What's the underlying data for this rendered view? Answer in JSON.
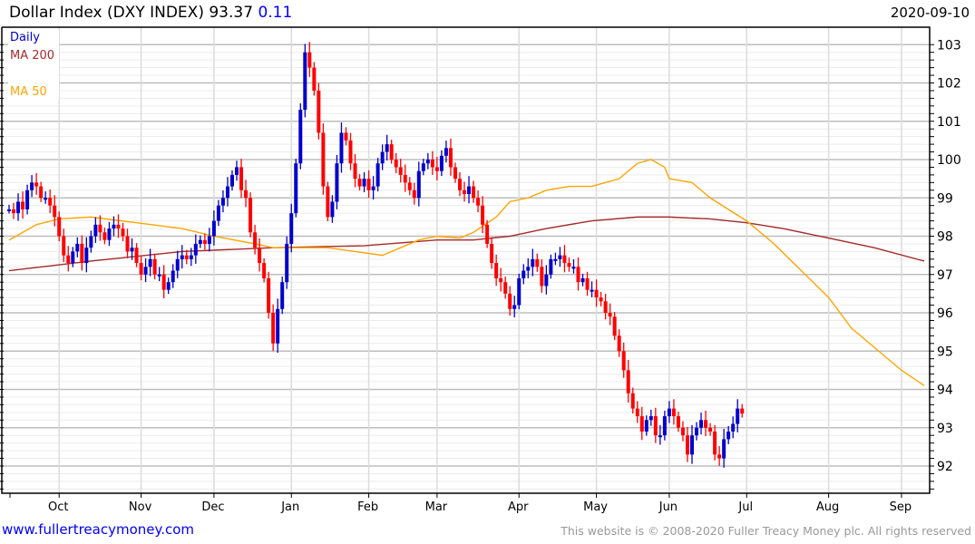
{
  "header": {
    "title": "Dollar Index (DXY INDEX)",
    "last": "93.37",
    "change": "0.11",
    "date": "2020-09-10"
  },
  "footer": {
    "site": "www.fullertreacymoney.com",
    "copyright": "This website is © 2008-2020 Fuller Treacy Money plc. All rights reserved"
  },
  "colors": {
    "up": "#0000cc",
    "down": "#ff0000",
    "ma200": "#a52a2a",
    "ma50": "#ffa500",
    "legend_daily": "#0000cc"
  },
  "chart_data": {
    "type": "candlestick",
    "title": "Dollar Index (DXY INDEX)",
    "legend": [
      {
        "label": "Daily",
        "color": "#0000cc"
      },
      {
        "label": "MA 200",
        "color": "#a52a2a"
      },
      {
        "label": "MA 50",
        "color": "#ffa500"
      }
    ],
    "legend_placement": "top-left",
    "ylim": [
      91.4,
      103.2
    ],
    "yticks": [
      92,
      93,
      94,
      95,
      96,
      97,
      98,
      99,
      100,
      101,
      102,
      103
    ],
    "x_days": 202,
    "xticks": [
      {
        "label": "Oct",
        "day": 11
      },
      {
        "label": "Nov",
        "day": 29
      },
      {
        "label": "Dec",
        "day": 45
      },
      {
        "label": "Jan",
        "day": 62
      },
      {
        "label": "Feb",
        "day": 79
      },
      {
        "label": "Mar",
        "day": 94
      },
      {
        "label": "Apr",
        "day": 112
      },
      {
        "label": "May",
        "day": 129
      },
      {
        "label": "Jun",
        "day": 145
      },
      {
        "label": "Jul",
        "day": 162
      },
      {
        "label": "Aug",
        "day": 180
      },
      {
        "label": "Sep",
        "day": 196
      }
    ],
    "close": [
      98.7,
      98.6,
      98.9,
      98.7,
      99.2,
      99.4,
      99.3,
      99.0,
      99.0,
      98.8,
      98.5,
      98.0,
      97.5,
      97.3,
      97.6,
      97.8,
      97.3,
      97.7,
      98.0,
      98.3,
      98.1,
      97.9,
      98.2,
      98.3,
      98.2,
      98.0,
      97.6,
      97.7,
      97.3,
      97.0,
      97.2,
      97.4,
      97.0,
      97.0,
      96.6,
      96.8,
      97.1,
      97.4,
      97.5,
      97.4,
      97.5,
      97.8,
      97.9,
      97.8,
      98.0,
      98.4,
      98.8,
      99.0,
      99.3,
      99.6,
      99.8,
      99.2,
      99.0,
      98.1,
      97.7,
      97.3,
      96.9,
      96.0,
      95.2,
      96.1,
      96.8,
      97.8,
      98.6,
      99.9,
      101.3,
      102.8,
      102.4,
      101.8,
      100.7,
      99.3,
      98.5,
      98.9,
      99.9,
      100.7,
      100.5,
      99.9,
      99.5,
      99.3,
      99.5,
      99.2,
      99.3,
      99.9,
      100.2,
      100.4,
      100.0,
      99.8,
      99.6,
      99.4,
      99.2,
      99.0,
      99.7,
      99.9,
      100.0,
      99.8,
      99.7,
      100.1,
      100.3,
      99.8,
      99.5,
      99.2,
      99.1,
      99.3,
      99.0,
      98.8,
      98.3,
      97.8,
      97.3,
      96.9,
      96.8,
      96.5,
      96.1,
      96.2,
      96.9,
      97.1,
      97.2,
      97.4,
      97.2,
      96.7,
      97.0,
      97.4,
      97.4,
      97.5,
      97.3,
      97.2,
      97.2,
      96.8,
      96.9,
      96.6,
      96.6,
      96.4,
      96.3,
      96.0,
      95.9,
      95.4,
      95.0,
      94.5,
      93.9,
      93.5,
      93.3,
      92.9,
      93.2,
      93.3,
      92.8,
      92.8,
      93.3,
      93.5,
      93.3,
      93.0,
      92.8,
      92.3,
      92.8,
      93.0,
      93.2,
      93.0,
      92.9,
      92.3,
      92.2,
      92.7,
      92.9,
      93.1,
      93.5,
      93.37
    ],
    "ma200": [
      [
        0,
        97.1
      ],
      [
        18,
        97.35
      ],
      [
        38,
        97.6
      ],
      [
        58,
        97.7
      ],
      [
        78,
        97.75
      ],
      [
        94,
        97.9
      ],
      [
        102,
        97.9
      ],
      [
        110,
        98.0
      ],
      [
        118,
        98.2
      ],
      [
        128,
        98.4
      ],
      [
        138,
        98.5
      ],
      [
        145,
        98.5
      ],
      [
        154,
        98.45
      ],
      [
        162,
        98.35
      ],
      [
        170,
        98.2
      ],
      [
        180,
        97.95
      ],
      [
        190,
        97.7
      ],
      [
        201,
        97.35
      ]
    ],
    "ma50": [
      [
        0,
        97.9
      ],
      [
        6,
        98.3
      ],
      [
        11,
        98.45
      ],
      [
        18,
        98.5
      ],
      [
        28,
        98.35
      ],
      [
        38,
        98.2
      ],
      [
        45,
        98.0
      ],
      [
        54,
        97.8
      ],
      [
        58,
        97.7
      ],
      [
        62,
        97.7
      ],
      [
        70,
        97.7
      ],
      [
        76,
        97.6
      ],
      [
        82,
        97.5
      ],
      [
        90,
        97.9
      ],
      [
        94,
        98.0
      ],
      [
        99,
        97.95
      ],
      [
        102,
        98.1
      ],
      [
        107,
        98.5
      ],
      [
        110,
        98.9
      ],
      [
        114,
        99.0
      ],
      [
        118,
        99.2
      ],
      [
        123,
        99.3
      ],
      [
        128,
        99.3
      ],
      [
        134,
        99.5
      ],
      [
        138,
        99.9
      ],
      [
        141,
        100.0
      ],
      [
        144,
        99.8
      ],
      [
        145,
        99.5
      ],
      [
        150,
        99.4
      ],
      [
        154,
        99.0
      ],
      [
        162,
        98.4
      ],
      [
        168,
        97.8
      ],
      [
        174,
        97.1
      ],
      [
        180,
        96.4
      ],
      [
        185,
        95.6
      ],
      [
        190,
        95.1
      ],
      [
        196,
        94.5
      ],
      [
        201,
        94.1
      ]
    ]
  }
}
